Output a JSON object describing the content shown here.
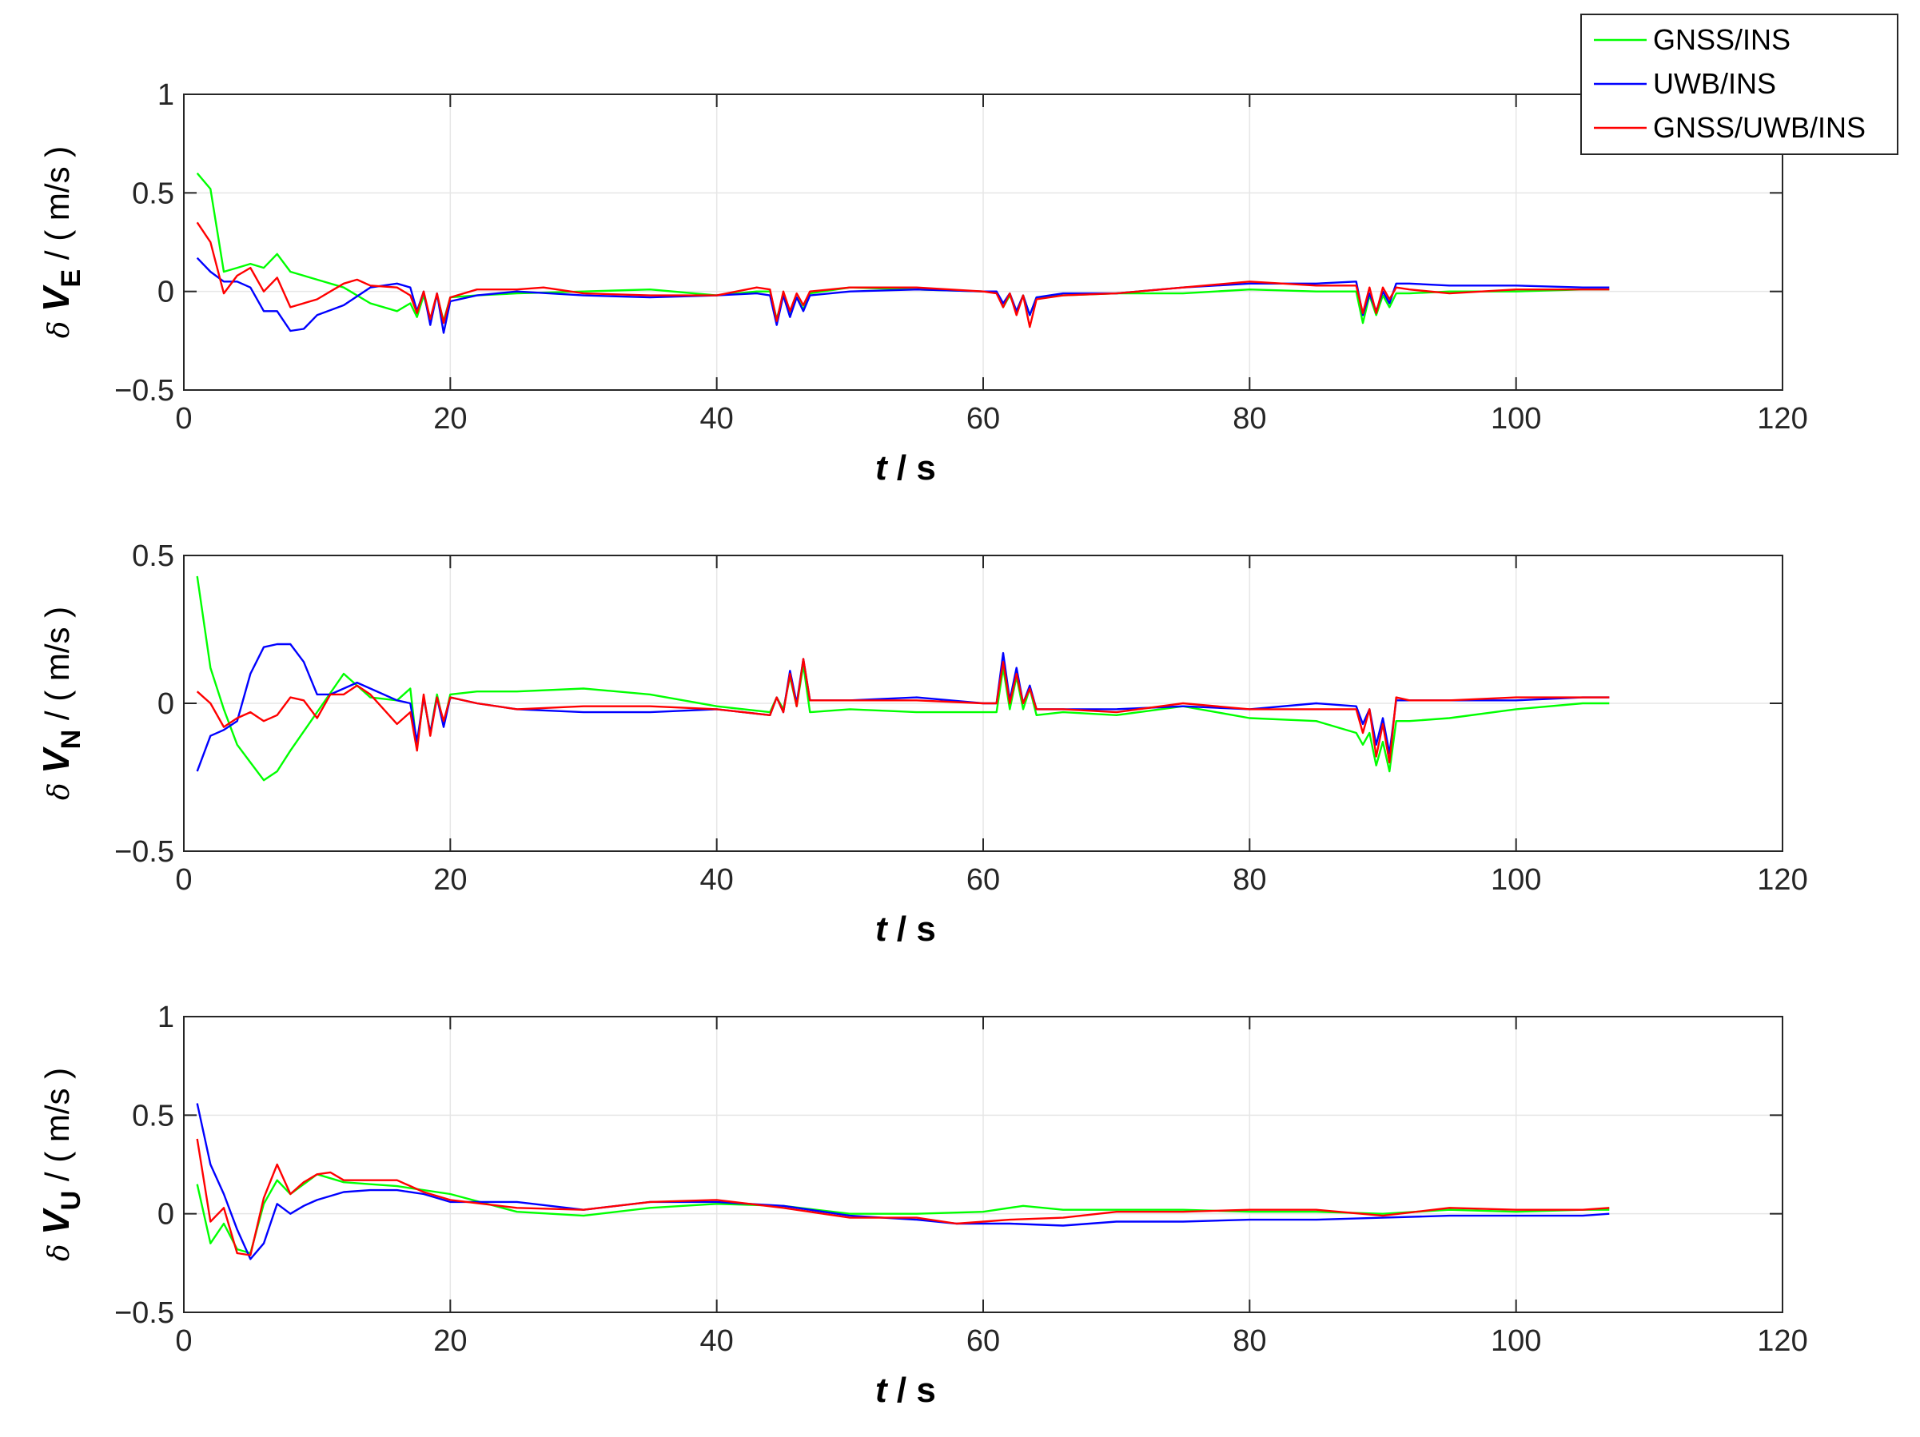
{
  "legend": {
    "position": "top-right",
    "entries": [
      {
        "name": "GNSS/INS",
        "color": "#00ff00"
      },
      {
        "name": "UWB/INS",
        "color": "#0000ff"
      },
      {
        "name": "GNSS/UWB/INS",
        "color": "#ff0000"
      }
    ]
  },
  "chart_data": [
    {
      "type": "line",
      "ylabel_prefix": "δ",
      "ylabel_var": "V",
      "ylabel_sub": "E",
      "ylabel_unit": " / ( m/s )",
      "xlabel_var": "t",
      "xlabel_unit": " / s",
      "xlim": [
        0,
        120
      ],
      "ylim": [
        -0.5,
        1
      ],
      "xticks": [
        0,
        20,
        40,
        60,
        80,
        100,
        120
      ],
      "yticks": [
        -0.5,
        0,
        0.5,
        1
      ],
      "ytick_labels": [
        "−0.5",
        "0",
        "0.5",
        "1"
      ],
      "grid": true,
      "series": [
        {
          "name": "GNSS/INS",
          "color": "#00ff00",
          "x": [
            1,
            2,
            3,
            4,
            5,
            6,
            7,
            8,
            10,
            12,
            14,
            16,
            17,
            17.5,
            18,
            18.5,
            19,
            19.5,
            20,
            22,
            25,
            30,
            35,
            40,
            43,
            44,
            44.5,
            45,
            45.5,
            46,
            46.5,
            47,
            50,
            55,
            60,
            61,
            61.5,
            62,
            62.5,
            63,
            63.5,
            64,
            66,
            70,
            75,
            80,
            85,
            88,
            88.5,
            89,
            89.5,
            90,
            90.5,
            91,
            92,
            95,
            100,
            105,
            107
          ],
          "y": [
            0.6,
            0.52,
            0.1,
            0.12,
            0.14,
            0.12,
            0.19,
            0.1,
            0.06,
            0.02,
            -0.06,
            -0.1,
            -0.06,
            -0.13,
            -0.02,
            -0.14,
            -0.02,
            -0.15,
            -0.03,
            -0.02,
            -0.01,
            0,
            0.01,
            -0.02,
            0,
            0,
            -0.14,
            -0.02,
            -0.12,
            -0.03,
            -0.09,
            -0.01,
            0.02,
            0.01,
            0,
            0,
            -0.08,
            -0.02,
            -0.1,
            -0.02,
            -0.12,
            -0.03,
            -0.02,
            -0.01,
            -0.01,
            0.01,
            0,
            0,
            -0.16,
            -0.02,
            -0.12,
            -0.02,
            -0.08,
            -0.01,
            -0.01,
            0,
            0,
            0.01,
            0.01
          ]
        },
        {
          "name": "UWB/INS",
          "color": "#0000ff",
          "x": [
            1,
            2,
            3,
            4,
            5,
            6,
            7,
            8,
            9,
            10,
            12,
            14,
            16,
            17,
            17.5,
            18,
            18.5,
            19,
            19.5,
            20,
            22,
            25,
            30,
            35,
            40,
            43,
            44,
            44.5,
            45,
            45.5,
            46,
            46.5,
            47,
            50,
            55,
            60,
            61,
            61.5,
            62,
            62.5,
            63,
            63.5,
            64,
            66,
            70,
            75,
            80,
            85,
            88,
            88.5,
            89,
            89.5,
            90,
            90.5,
            91,
            92,
            95,
            100,
            105,
            107
          ],
          "y": [
            0.17,
            0.1,
            0.05,
            0.05,
            0.02,
            -0.1,
            -0.1,
            -0.2,
            -0.19,
            -0.12,
            -0.07,
            0.02,
            0.04,
            0.02,
            -0.1,
            0,
            -0.17,
            -0.01,
            -0.21,
            -0.05,
            -0.02,
            0,
            -0.02,
            -0.03,
            -0.02,
            -0.01,
            -0.02,
            -0.17,
            -0.02,
            -0.13,
            -0.03,
            -0.1,
            -0.02,
            0,
            0.01,
            0,
            0,
            -0.06,
            -0.01,
            -0.1,
            -0.02,
            -0.12,
            -0.03,
            -0.01,
            -0.01,
            0.02,
            0.04,
            0.04,
            0.05,
            -0.12,
            -0.01,
            -0.1,
            0,
            -0.06,
            0.04,
            0.04,
            0.03,
            0.03,
            0.02,
            0.02
          ]
        },
        {
          "name": "GNSS/UWB/INS",
          "color": "#ff0000",
          "x": [
            1,
            2,
            3,
            4,
            5,
            6,
            7,
            8,
            10,
            12,
            13,
            14,
            16,
            17,
            17.5,
            18,
            18.5,
            19,
            19.5,
            20,
            22,
            25,
            27,
            30,
            35,
            40,
            43,
            44,
            44.5,
            45,
            45.5,
            46,
            46.5,
            47,
            50,
            55,
            60,
            61,
            61.5,
            62,
            62.5,
            63,
            63.5,
            64,
            66,
            70,
            75,
            80,
            85,
            88,
            88.5,
            89,
            89.5,
            90,
            90.5,
            91,
            92,
            95,
            100,
            105,
            107
          ],
          "y": [
            0.35,
            0.25,
            -0.01,
            0.08,
            0.12,
            0,
            0.07,
            -0.08,
            -0.04,
            0.04,
            0.06,
            0.03,
            0.02,
            -0.02,
            -0.11,
            0,
            -0.14,
            -0.01,
            -0.16,
            -0.03,
            0.01,
            0.01,
            0.02,
            -0.01,
            -0.02,
            -0.02,
            0.02,
            0.01,
            -0.15,
            0,
            -0.1,
            -0.01,
            -0.07,
            0,
            0.02,
            0.02,
            0,
            -0.01,
            -0.08,
            -0.01,
            -0.12,
            -0.02,
            -0.18,
            -0.04,
            -0.02,
            -0.01,
            0.02,
            0.05,
            0.03,
            0.03,
            -0.11,
            0.02,
            -0.11,
            0.02,
            -0.04,
            0.02,
            0.01,
            -0.01,
            0.01,
            0.01,
            0.01
          ]
        }
      ]
    },
    {
      "type": "line",
      "ylabel_prefix": "δ",
      "ylabel_var": "V",
      "ylabel_sub": "N",
      "ylabel_unit": " / ( m/s )",
      "xlabel_var": "t",
      "xlabel_unit": " / s",
      "xlim": [
        0,
        120
      ],
      "ylim": [
        -0.5,
        0.5
      ],
      "xticks": [
        0,
        20,
        40,
        60,
        80,
        100,
        120
      ],
      "yticks": [
        -0.5,
        0,
        0.5
      ],
      "ytick_labels": [
        "−0.5",
        "0",
        "0.5"
      ],
      "grid": true,
      "series": [
        {
          "name": "GNSS/INS",
          "color": "#00ff00",
          "x": [
            1,
            2,
            3,
            4,
            5,
            6,
            7,
            8,
            10,
            12,
            14,
            16,
            17,
            17.5,
            18,
            18.5,
            19,
            19.5,
            20,
            22,
            25,
            30,
            35,
            40,
            44,
            44.5,
            45,
            45.5,
            46,
            46.5,
            47,
            50,
            55,
            60,
            61,
            61.5,
            62,
            62.5,
            63,
            63.5,
            64,
            66,
            70,
            75,
            80,
            85,
            88,
            88.5,
            89,
            89.5,
            90,
            90.5,
            91,
            92,
            95,
            100,
            105,
            107
          ],
          "y": [
            0.43,
            0.12,
            -0.02,
            -0.14,
            -0.2,
            -0.26,
            -0.23,
            -0.16,
            -0.03,
            0.1,
            0.02,
            0.01,
            0.05,
            -0.15,
            0.02,
            -0.1,
            0.03,
            -0.07,
            0.03,
            0.04,
            0.04,
            0.05,
            0.03,
            -0.01,
            -0.03,
            0.02,
            -0.02,
            0.09,
            -0.01,
            0.13,
            -0.03,
            -0.02,
            -0.03,
            -0.03,
            -0.03,
            0.12,
            -0.02,
            0.09,
            -0.02,
            0.05,
            -0.04,
            -0.03,
            -0.04,
            -0.01,
            -0.05,
            -0.06,
            -0.1,
            -0.14,
            -0.1,
            -0.21,
            -0.13,
            -0.23,
            -0.06,
            -0.06,
            -0.05,
            -0.02,
            0,
            0
          ]
        },
        {
          "name": "UWB/INS",
          "color": "#0000ff",
          "x": [
            1,
            2,
            3,
            4,
            5,
            6,
            7,
            8,
            9,
            10,
            11,
            12,
            13,
            14,
            16,
            17,
            17.5,
            18,
            18.5,
            19,
            19.5,
            20,
            22,
            25,
            30,
            35,
            40,
            44,
            44.5,
            45,
            45.5,
            46,
            46.5,
            47,
            50,
            55,
            60,
            61,
            61.5,
            62,
            62.5,
            63,
            63.5,
            64,
            66,
            70,
            75,
            80,
            85,
            88,
            88.5,
            89,
            89.5,
            90,
            90.5,
            91,
            92,
            95,
            100,
            105,
            107
          ],
          "y": [
            -0.23,
            -0.11,
            -0.09,
            -0.06,
            0.1,
            0.19,
            0.2,
            0.2,
            0.14,
            0.03,
            0.03,
            0.05,
            0.07,
            0.05,
            0.01,
            0,
            -0.13,
            0.02,
            -0.1,
            0.02,
            -0.08,
            0.02,
            0,
            -0.02,
            -0.03,
            -0.03,
            -0.02,
            -0.04,
            0.02,
            -0.03,
            0.11,
            0,
            0.15,
            0.01,
            0.01,
            0.02,
            0,
            0,
            0.17,
            0.01,
            0.12,
            0,
            0.06,
            -0.02,
            -0.02,
            -0.02,
            -0.01,
            -0.02,
            0,
            -0.01,
            -0.07,
            -0.02,
            -0.14,
            -0.05,
            -0.17,
            0.01,
            0.01,
            0.01,
            0.01,
            0.02,
            0.02
          ]
        },
        {
          "name": "GNSS/UWB/INS",
          "color": "#ff0000",
          "x": [
            1,
            2,
            3,
            4,
            5,
            6,
            7,
            8,
            9,
            10,
            11,
            12,
            13,
            14,
            16,
            17,
            17.5,
            18,
            18.5,
            19,
            19.5,
            20,
            22,
            25,
            30,
            35,
            40,
            44,
            44.5,
            45,
            45.5,
            46,
            46.5,
            47,
            50,
            55,
            60,
            61,
            61.5,
            62,
            62.5,
            63,
            63.5,
            64,
            66,
            70,
            75,
            80,
            85,
            88,
            88.5,
            89,
            89.5,
            90,
            90.5,
            91,
            92,
            95,
            100,
            105,
            107
          ],
          "y": [
            0.04,
            0,
            -0.08,
            -0.05,
            -0.03,
            -0.06,
            -0.04,
            0.02,
            0.01,
            -0.05,
            0.03,
            0.03,
            0.06,
            0.03,
            -0.07,
            -0.03,
            -0.16,
            0.03,
            -0.11,
            0.02,
            -0.06,
            0.02,
            0,
            -0.02,
            -0.01,
            -0.01,
            -0.02,
            -0.04,
            0.02,
            -0.03,
            0.1,
            -0.01,
            0.15,
            0.01,
            0.01,
            0.01,
            0,
            0,
            0.14,
            0,
            0.1,
            0,
            0.05,
            -0.02,
            -0.02,
            -0.03,
            0,
            -0.02,
            -0.02,
            -0.02,
            -0.1,
            -0.02,
            -0.18,
            -0.07,
            -0.2,
            0.02,
            0.01,
            0.01,
            0.02,
            0.02,
            0.02
          ]
        }
      ]
    },
    {
      "type": "line",
      "ylabel_prefix": "δ",
      "ylabel_var": "V",
      "ylabel_sub": "U",
      "ylabel_unit": " / ( m/s )",
      "xlabel_var": "t",
      "xlabel_unit": " / s",
      "xlim": [
        0,
        120
      ],
      "ylim": [
        -0.5,
        1
      ],
      "xticks": [
        0,
        20,
        40,
        60,
        80,
        100,
        120
      ],
      "yticks": [
        -0.5,
        0,
        0.5,
        1
      ],
      "ytick_labels": [
        "−0.5",
        "0",
        "0.5",
        "1"
      ],
      "grid": true,
      "series": [
        {
          "name": "GNSS/INS",
          "color": "#00ff00",
          "x": [
            1,
            2,
            3,
            4,
            5,
            6,
            7,
            8,
            9,
            10,
            12,
            14,
            16,
            18,
            20,
            25,
            30,
            35,
            40,
            45,
            50,
            55,
            60,
            63,
            66,
            70,
            75,
            80,
            85,
            90,
            95,
            100,
            105,
            107
          ],
          "y": [
            0.15,
            -0.15,
            -0.05,
            -0.18,
            -0.2,
            0.05,
            0.17,
            0.1,
            0.15,
            0.2,
            0.16,
            0.15,
            0.14,
            0.12,
            0.1,
            0.01,
            -0.01,
            0.03,
            0.05,
            0.04,
            0,
            0,
            0.01,
            0.04,
            0.02,
            0.02,
            0.02,
            0.01,
            0.01,
            0,
            0.02,
            0.01,
            0.02,
            0.02
          ]
        },
        {
          "name": "UWB/INS",
          "color": "#0000ff",
          "x": [
            1,
            2,
            3,
            4,
            5,
            6,
            7,
            8,
            9,
            10,
            12,
            14,
            16,
            18,
            20,
            25,
            30,
            35,
            40,
            45,
            50,
            55,
            58,
            62,
            66,
            70,
            75,
            80,
            85,
            90,
            95,
            100,
            105,
            107
          ],
          "y": [
            0.56,
            0.25,
            0.1,
            -0.08,
            -0.23,
            -0.15,
            0.05,
            0,
            0.04,
            0.07,
            0.11,
            0.12,
            0.12,
            0.1,
            0.06,
            0.06,
            0.02,
            0.06,
            0.06,
            0.04,
            -0.01,
            -0.03,
            -0.05,
            -0.05,
            -0.06,
            -0.04,
            -0.04,
            -0.03,
            -0.03,
            -0.02,
            -0.01,
            -0.01,
            -0.01,
            0
          ]
        },
        {
          "name": "GNSS/UWB/INS",
          "color": "#ff0000",
          "x": [
            1,
            2,
            3,
            4,
            5,
            6,
            7,
            8,
            9,
            10,
            11,
            12,
            14,
            16,
            18,
            20,
            25,
            30,
            35,
            40,
            45,
            50,
            55,
            58,
            62,
            66,
            70,
            75,
            80,
            85,
            90,
            95,
            100,
            105,
            107
          ],
          "y": [
            0.38,
            -0.04,
            0.03,
            -0.2,
            -0.21,
            0.08,
            0.25,
            0.1,
            0.16,
            0.2,
            0.21,
            0.17,
            0.17,
            0.17,
            0.11,
            0.07,
            0.03,
            0.02,
            0.06,
            0.07,
            0.03,
            -0.02,
            -0.02,
            -0.05,
            -0.03,
            -0.02,
            0.01,
            0.01,
            0.02,
            0.02,
            -0.01,
            0.03,
            0.02,
            0.02,
            0.03
          ]
        }
      ]
    }
  ]
}
